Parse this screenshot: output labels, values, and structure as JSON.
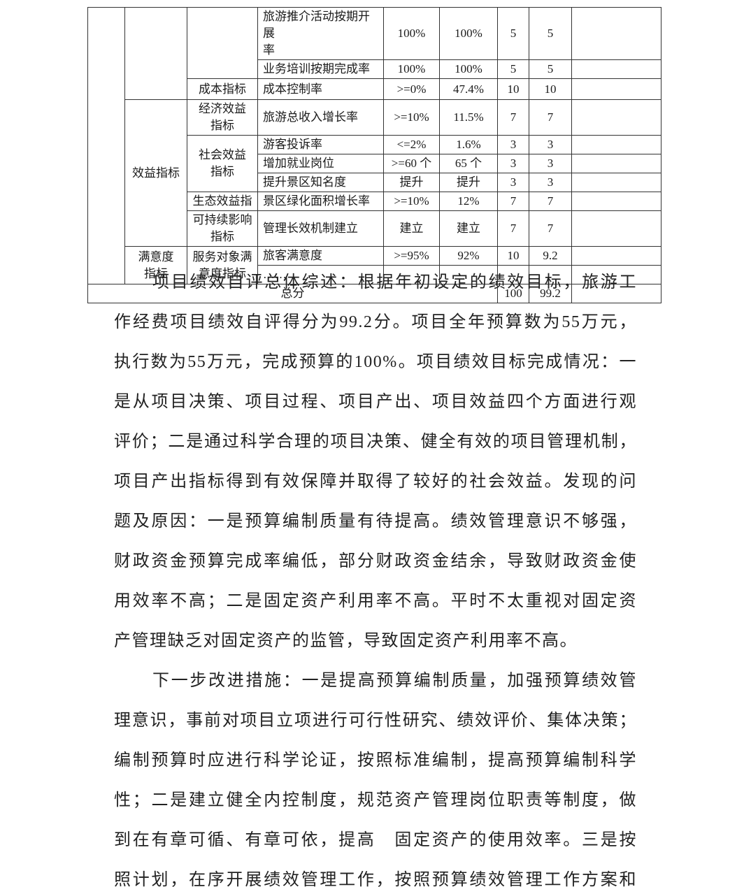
{
  "colors": {
    "background": "#ffffff",
    "table_border": "#333333",
    "text": "#1e1e1e"
  },
  "table": {
    "rows": [
      {
        "indicator": "旅游推介活动按期开展\n率",
        "target": "100%",
        "actual": "100%",
        "score": "5",
        "self_score": "5"
      },
      {
        "indicator": "业务培训按期完成率",
        "target": "100%",
        "actual": "100%",
        "score": "5",
        "self_score": "5"
      },
      {
        "category3": "成本指标",
        "indicator": "成本控制率",
        "target": ">=0%",
        "actual": "47.4%",
        "score": "10",
        "self_score": "10"
      },
      {
        "category2": "效益指标",
        "category3": "经济效益\n指标",
        "indicator": "旅游总收入增长率",
        "target": ">=10%",
        "actual": "11.5%",
        "score": "7",
        "self_score": "7"
      },
      {
        "category3": "社会效益\n指标",
        "indicator": "游客投诉率",
        "target": "<=2%",
        "actual": "1.6%",
        "score": "3",
        "self_score": "3"
      },
      {
        "indicator": "增加就业岗位",
        "target": ">=60 个",
        "actual": "65 个",
        "score": "3",
        "self_score": "3"
      },
      {
        "indicator": "提升景区知名度",
        "target": "提升",
        "actual": "提升",
        "score": "3",
        "self_score": "3"
      },
      {
        "category3": "生态效益指",
        "indicator": "景区绿化面积增长率",
        "target": ">=10%",
        "actual": "12%",
        "score": "7",
        "self_score": "7"
      },
      {
        "category3": "可持续影响\n指标",
        "indicator": "管理长效机制建立",
        "target": "建立",
        "actual": "建立",
        "score": "7",
        "self_score": "7"
      },
      {
        "category2": "满意度\n指标",
        "category3": "服务对象满\n意度指标",
        "indicator": "旅客满意度",
        "target": ">=95%",
        "actual": "92%",
        "score": "10",
        "self_score": "9.2"
      },
      {
        "indicator": "……"
      }
    ],
    "total": {
      "label": "总分",
      "score": "100",
      "self_score": "99.2"
    }
  },
  "body": {
    "paragraphs": [
      {
        "justify_last_line": false,
        "lines": [
          "项目绩效自评总体综述：根据年初设定的绩效目标，旅游工",
          "作经费项目绩效自评得分为99.2分。项目全年预算数为55万元，",
          "执行数为55万元，完成预算的100%。项目绩效目标完成情况：一",
          "是从项目决策、项目过程、项目产出、项目效益四个方面进行观",
          "评价；二是通过科学合理的项目决策、健全有效的项目管理机制，",
          "项目产出指标得到有效保障并取得了较好的社会效益。发现的问",
          "题及原因：一是预算编制质量有待提高。绩效管理意识不够强，",
          "财政资金预算完成率编低，部分财政资金结余，导致财政资金使",
          "用效率不高；二是固定资产利用率不高。平时不太重视对固定资",
          "产管理缺乏对固定资产的监管，导致固定资产利用率不高。"
        ]
      },
      {
        "justify_last_line": true,
        "lines": [
          "下一步改进措施：一是提高预算编制质量，加强预算绩效管",
          "理意识，事前对项目立项进行可行性研究、绩效评价、集体决策；",
          "编制预算时应进行科学论证，按照标准编制，提高预算编制科学",
          "性；二是建立健全内控制度，规范资产管理岗位职责等制度，做",
          "到在有章可循、有章可依，提高　固定资产的使用效率。三是按",
          "照计划，在序开展绩效管理工作，按照预算绩效管理工作方案和"
        ]
      }
    ]
  }
}
